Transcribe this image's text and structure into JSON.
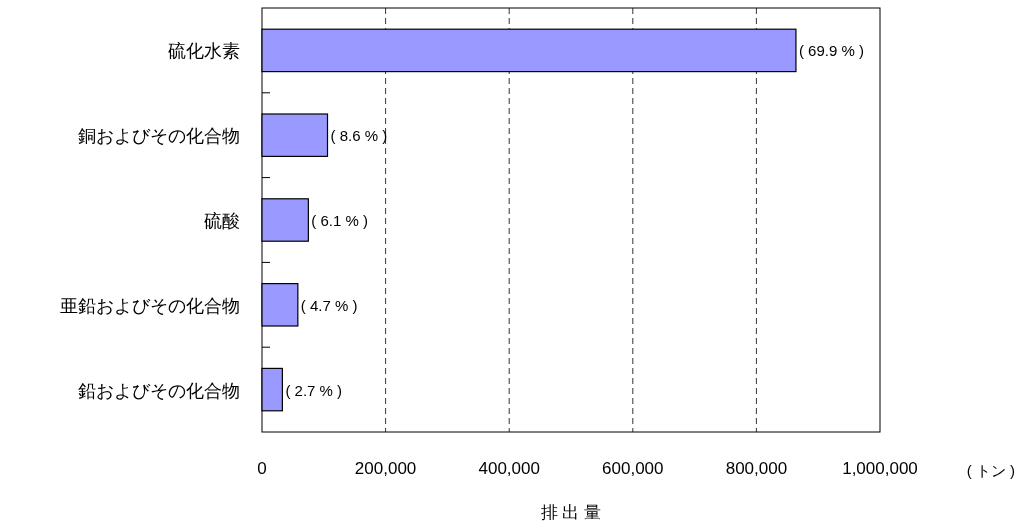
{
  "chart_data": {
    "type": "bar",
    "orientation": "horizontal",
    "categories": [
      "硫化水素",
      "銅およびその化合物",
      "硫酸",
      "亜鉛およびその化合物",
      "鉛およびその化合物"
    ],
    "values": [
      864000,
      106000,
      75000,
      58000,
      33000
    ],
    "color": "#9999ff",
    "xlim": [
      0,
      1000000
    ],
    "xticks": [
      {
        "value": 0,
        "label": "0"
      },
      {
        "value": 200000,
        "label": "200,000"
      },
      {
        "value": 400000,
        "label": "400,000"
      },
      {
        "value": 600000,
        "label": "600,000"
      },
      {
        "value": 800000,
        "label": "800,000"
      },
      {
        "value": 1000000,
        "label": "1,000,000"
      }
    ],
    "grid": "x",
    "xlabel": "排 出 量",
    "annotations": [
      {
        "text": "( 69.9 % )",
        "x": 864000,
        "y": "硫化水素"
      },
      {
        "text": "( 8.6 % )",
        "x": 106000,
        "y": "銅およびその化合物"
      },
      {
        "text": "( 6.1 % )",
        "x": 75000,
        "y": "硫酸"
      },
      {
        "text": "( 4.7 % )",
        "x": 58000,
        "y": "亜鉛およびその化合物"
      },
      {
        "text": "( 2.7 % )",
        "x": 33000,
        "y": "鉛およびその化合物"
      },
      "( トン )"
    ]
  }
}
